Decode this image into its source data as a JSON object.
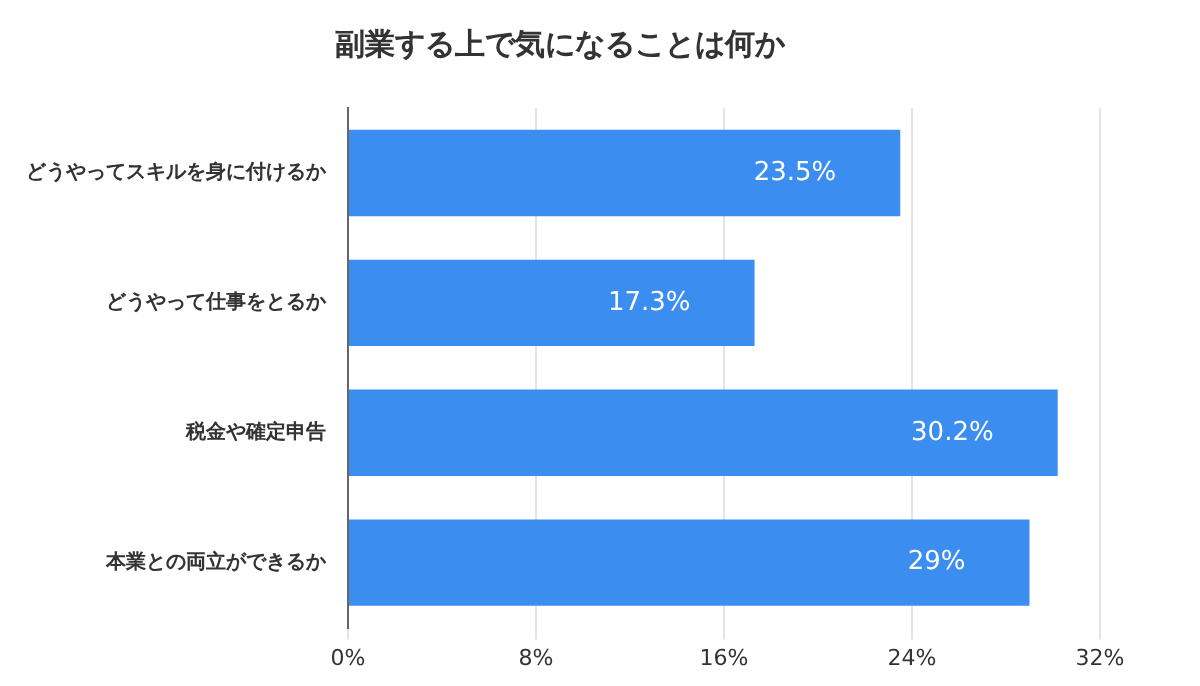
{
  "chart_data": {
    "type": "bar",
    "orientation": "horizontal",
    "title": "副業する上で気になることは何か",
    "categories": [
      "どうやってスキルを身に付けるか",
      "どうやって仕事をとるか",
      "税金や確定申告",
      "本業との両立ができるか"
    ],
    "values": [
      23.5,
      17.3,
      30.2,
      29
    ],
    "value_labels": [
      "23.5%",
      "17.3%",
      "30.2%",
      "29%"
    ],
    "color": "#3b8eef",
    "xlim": [
      0,
      32
    ],
    "xticks": [
      {
        "value": 0,
        "label": "0%"
      },
      {
        "value": 8,
        "label": "8%"
      },
      {
        "value": 16,
        "label": "16%"
      },
      {
        "value": 24,
        "label": "24%"
      },
      {
        "value": 32,
        "label": "32%"
      }
    ],
    "grid": "x",
    "legend": false
  }
}
